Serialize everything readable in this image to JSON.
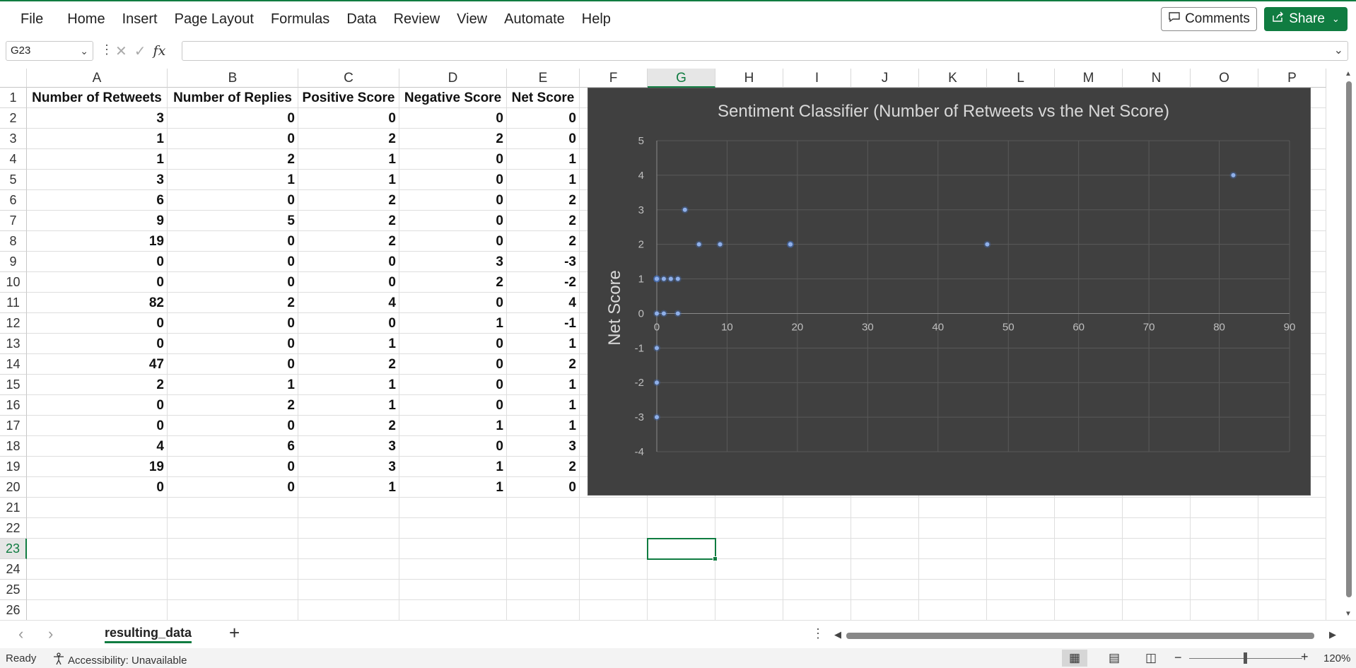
{
  "menu": [
    "File",
    "Home",
    "Insert",
    "Page Layout",
    "Formulas",
    "Data",
    "Review",
    "View",
    "Automate",
    "Help"
  ],
  "buttons": {
    "comments": "Comments",
    "share": "Share"
  },
  "formula_bar": {
    "name_box": "G23",
    "formula": ""
  },
  "columns": [
    "A",
    "B",
    "C",
    "D",
    "E",
    "F",
    "G",
    "H",
    "I",
    "J",
    "K",
    "L",
    "M",
    "N",
    "O",
    "P"
  ],
  "selected_column": "G",
  "rows": [
    "1",
    "2",
    "3",
    "4",
    "5",
    "6",
    "7",
    "8",
    "9",
    "10",
    "11",
    "12",
    "13",
    "14",
    "15",
    "16",
    "17",
    "18",
    "19",
    "20",
    "21",
    "22",
    "23",
    "24",
    "25",
    "26"
  ],
  "selected_row": "23",
  "table": {
    "headers": [
      "Number of Retweets",
      "Number of Replies",
      "Positive Score",
      "Negative Score",
      "Net Score"
    ],
    "rows": [
      [
        "3",
        "0",
        "0",
        "0",
        "0"
      ],
      [
        "1",
        "0",
        "2",
        "2",
        "0"
      ],
      [
        "1",
        "2",
        "1",
        "0",
        "1"
      ],
      [
        "3",
        "1",
        "1",
        "0",
        "1"
      ],
      [
        "6",
        "0",
        "2",
        "0",
        "2"
      ],
      [
        "9",
        "5",
        "2",
        "0",
        "2"
      ],
      [
        "19",
        "0",
        "2",
        "0",
        "2"
      ],
      [
        "0",
        "0",
        "0",
        "3",
        "-3"
      ],
      [
        "0",
        "0",
        "0",
        "2",
        "-2"
      ],
      [
        "82",
        "2",
        "4",
        "0",
        "4"
      ],
      [
        "0",
        "0",
        "0",
        "1",
        "-1"
      ],
      [
        "0",
        "0",
        "1",
        "0",
        "1"
      ],
      [
        "47",
        "0",
        "2",
        "0",
        "2"
      ],
      [
        "2",
        "1",
        "1",
        "0",
        "1"
      ],
      [
        "0",
        "2",
        "1",
        "0",
        "1"
      ],
      [
        "0",
        "0",
        "2",
        "1",
        "1"
      ],
      [
        "4",
        "6",
        "3",
        "0",
        "3"
      ],
      [
        "19",
        "0",
        "3",
        "1",
        "2"
      ],
      [
        "0",
        "0",
        "1",
        "1",
        "0"
      ]
    ]
  },
  "chart_data": {
    "type": "scatter",
    "title": "Sentiment Classifier (Number of Retweets vs the Net Score)",
    "xlabel": "Number of Retweets",
    "ylabel": "Net Score",
    "xlim": [
      0,
      90
    ],
    "ylim": [
      -4,
      5
    ],
    "xticks": [
      0,
      10,
      20,
      30,
      40,
      50,
      60,
      70,
      80,
      90
    ],
    "yticks": [
      5,
      4,
      3,
      2,
      1,
      0,
      -1,
      -2,
      -3,
      -4
    ],
    "grid": true,
    "series": [
      {
        "x": [
          3,
          1,
          1,
          3,
          6,
          9,
          19,
          0,
          0,
          82,
          0,
          0,
          47,
          2,
          0,
          0,
          4,
          19,
          0
        ],
        "y": [
          0,
          0,
          1,
          1,
          2,
          2,
          2,
          -3,
          -2,
          4,
          -1,
          1,
          2,
          1,
          1,
          1,
          3,
          2,
          0
        ],
        "color": "#4472c4"
      }
    ]
  },
  "sheet_tab": "resulting_data",
  "status": {
    "ready": "Ready",
    "accessibility": "Accessibility: Unavailable",
    "zoom": "120%"
  },
  "colors": {
    "accent": "#107c41",
    "chart_bg": "#404040",
    "marker": "#4472c4"
  }
}
